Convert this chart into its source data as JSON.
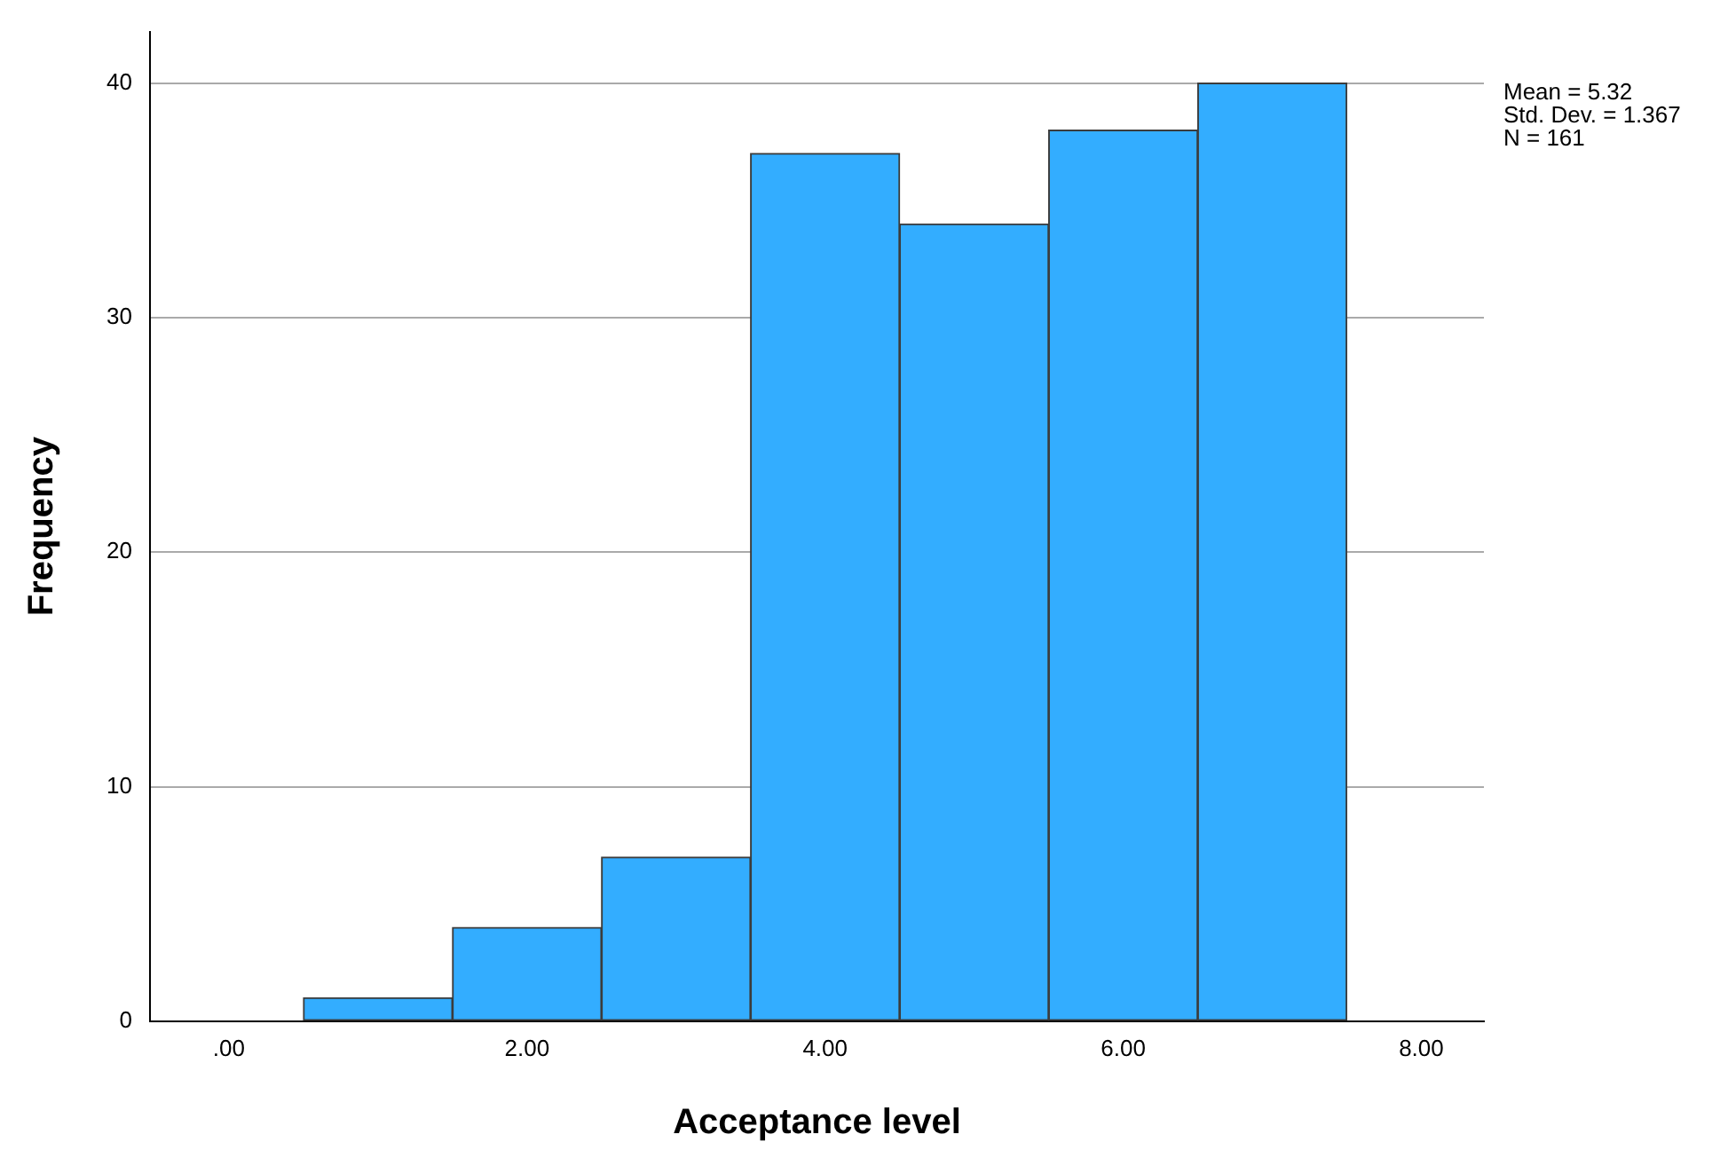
{
  "chart_data": {
    "type": "histogram",
    "xlabel": "Acceptance level",
    "ylabel": "Frequency",
    "bins": [
      0.5,
      1.5,
      2.5,
      3.5,
      4.5,
      5.5,
      6.5,
      7.5
    ],
    "values": [
      1,
      4,
      7,
      37,
      34,
      38,
      40
    ],
    "color": "#33adff",
    "xlim": [
      -0.53,
      8.42
    ],
    "xticks": [
      {
        "value": 0,
        "label": ".00"
      },
      {
        "value": 2,
        "label": "2.00"
      },
      {
        "value": 4,
        "label": "4.00"
      },
      {
        "value": 6,
        "label": "6.00"
      },
      {
        "value": 8,
        "label": "8.00"
      }
    ],
    "ylim": [
      0,
      42.2
    ],
    "yticks": [
      0,
      10,
      20,
      30,
      40
    ],
    "grid": "y",
    "legend": false,
    "annotations": [
      "Mean = 5.32",
      "Std. Dev. = 1.367",
      "N = 161"
    ]
  }
}
